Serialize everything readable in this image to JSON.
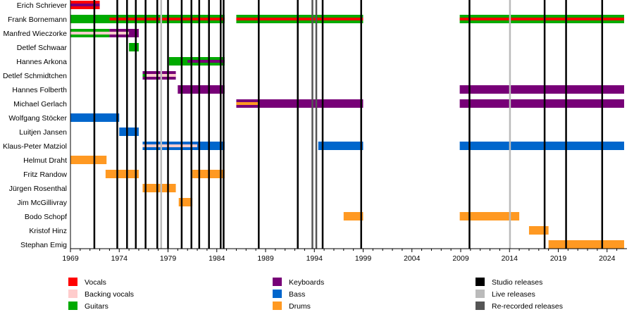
{
  "chart_data": {
    "type": "timeline",
    "xlim": [
      1969,
      2025.75
    ],
    "x_ticks": [
      1969,
      1974,
      1979,
      1984,
      1989,
      1994,
      1999,
      2004,
      2009,
      2014,
      2019,
      2024
    ],
    "colors": {
      "Vocals": "#ff0000",
      "Backing vocals": "#ffcccc",
      "Guitars": "#00aa00",
      "Keyboards": "#770077",
      "Bass": "#0066cc",
      "Drums": "#ff9922",
      "Studio releases": "#000000",
      "Live releases": "#bbbbbb",
      "Re-recorded releases": "#555555"
    },
    "members": [
      {
        "name": "Erich Schriever",
        "bars": [
          {
            "role": "Vocals",
            "from": 1969,
            "to": 1972
          }
        ],
        "stripes": [
          {
            "role": "Keyboards",
            "from": 1969,
            "to": 1972
          }
        ]
      },
      {
        "name": "Frank Bornemann",
        "bars": [
          {
            "role": "Guitars",
            "from": 1969,
            "to": 1984.8
          },
          {
            "role": "Guitars",
            "from": 1986,
            "to": 1999
          },
          {
            "role": "Guitars",
            "from": 2008.9,
            "to": 2025.75
          }
        ],
        "stripes": [
          {
            "role": "Vocals",
            "from": 1973,
            "to": 1984.8
          },
          {
            "role": "Vocals",
            "from": 1986,
            "to": 1999
          },
          {
            "role": "Vocals",
            "from": 2008.9,
            "to": 2025.75
          }
        ]
      },
      {
        "name": "Manfred Wieczorke",
        "bars": [
          {
            "role": "Guitars",
            "from": 1969,
            "to": 1973
          },
          {
            "role": "Keyboards",
            "from": 1973,
            "to": 1976
          }
        ],
        "stripes": [
          {
            "role": "Backing vocals",
            "from": 1969,
            "to": 1975
          }
        ]
      },
      {
        "name": "Detlef Schwaar",
        "bars": [
          {
            "role": "Guitars",
            "from": 1975,
            "to": 1976
          }
        ],
        "stripes": []
      },
      {
        "name": "Hannes Arkona",
        "bars": [
          {
            "role": "Guitars",
            "from": 1979.1,
            "to": 1984.8
          }
        ],
        "stripes": [
          {
            "role": "Keyboards",
            "from": 1981,
            "to": 1984.8
          }
        ]
      },
      {
        "name": "Detlef Schmidtchen",
        "bars": [
          {
            "role": "Keyboards",
            "from": 1976.4,
            "to": 1979.8
          }
        ],
        "stripes": [
          {
            "role": "Backing vocals",
            "from": 1976.4,
            "to": 1979.8
          },
          {
            "role": "Guitars",
            "from": 1976.4,
            "to": 1976.8
          }
        ]
      },
      {
        "name": "Hannes Folberth",
        "bars": [
          {
            "role": "Keyboards",
            "from": 1980,
            "to": 1984.8
          },
          {
            "role": "Keyboards",
            "from": 2008.9,
            "to": 2025.75
          }
        ],
        "stripes": []
      },
      {
        "name": "Michael Gerlach",
        "bars": [
          {
            "role": "Keyboards",
            "from": 1986,
            "to": 1999
          },
          {
            "role": "Keyboards",
            "from": 2008.9,
            "to": 2025.75
          }
        ],
        "stripes": [
          {
            "role": "Drums",
            "from": 1986,
            "to": 1988.3
          }
        ]
      },
      {
        "name": "Wolfgang Stöcker",
        "bars": [
          {
            "role": "Bass",
            "from": 1969,
            "to": 1974
          }
        ],
        "stripes": []
      },
      {
        "name": "Luitjen Jansen",
        "bars": [
          {
            "role": "Bass",
            "from": 1974,
            "to": 1976
          }
        ],
        "stripes": []
      },
      {
        "name": "Klaus-Peter Matziol",
        "bars": [
          {
            "role": "Bass",
            "from": 1976.4,
            "to": 1984.8
          },
          {
            "role": "Bass",
            "from": 1994.4,
            "to": 1999
          },
          {
            "role": "Bass",
            "from": 2008.9,
            "to": 2025.75
          }
        ],
        "stripes": [
          {
            "role": "Backing vocals",
            "from": 1976.4,
            "to": 1982
          }
        ]
      },
      {
        "name": "Helmut Draht",
        "bars": [
          {
            "role": "Drums",
            "from": 1969,
            "to": 1972.7
          }
        ],
        "stripes": []
      },
      {
        "name": "Fritz Randow",
        "bars": [
          {
            "role": "Drums",
            "from": 1972.6,
            "to": 1976
          },
          {
            "role": "Drums",
            "from": 1981.5,
            "to": 1984.8
          }
        ],
        "stripes": []
      },
      {
        "name": "Jürgen Rosenthal",
        "bars": [
          {
            "role": "Drums",
            "from": 1976.4,
            "to": 1979.8
          }
        ],
        "stripes": []
      },
      {
        "name": "Jim McGillivray",
        "bars": [
          {
            "role": "Drums",
            "from": 1980.1,
            "to": 1981.5
          }
        ],
        "stripes": []
      },
      {
        "name": "Bodo Schopf",
        "bars": [
          {
            "role": "Drums",
            "from": 1997,
            "to": 1999
          },
          {
            "role": "Drums",
            "from": 2008.9,
            "to": 2015
          }
        ],
        "stripes": []
      },
      {
        "name": "Kristof Hinz",
        "bars": [
          {
            "role": "Drums",
            "from": 2016,
            "to": 2018
          }
        ],
        "stripes": []
      },
      {
        "name": "Stephan Emig",
        "bars": [
          {
            "role": "Drums",
            "from": 2018,
            "to": 2025.75
          }
        ],
        "stripes": []
      }
    ],
    "releases": {
      "studio": [
        1971.45,
        1973.8,
        1974.8,
        1975.7,
        1976.7,
        1977.9,
        1979.0,
        1980.4,
        1981.4,
        1982.2,
        1983.2,
        1984.4,
        1984.7,
        1988.3,
        1992.3,
        1994.85,
        1998.8,
        2009.9,
        2017.6,
        2019.8,
        2023.5
      ],
      "live": [
        1978.3,
        2014.05
      ],
      "rerecorded": [
        1993.8,
        1994.2
      ]
    },
    "legend": [
      [
        "Vocals",
        "Backing vocals",
        "Guitars"
      ],
      [
        "Keyboards",
        "Bass",
        "Drums"
      ],
      [
        "Studio releases",
        "Live releases",
        "Re-recorded releases"
      ]
    ],
    "legend_placement": "bottom"
  }
}
